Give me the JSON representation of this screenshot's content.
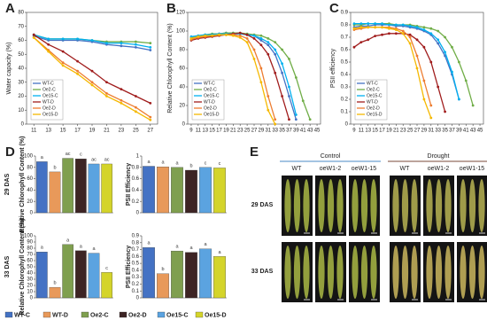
{
  "panel_labels": [
    "A",
    "B",
    "C",
    "D",
    "E"
  ],
  "panel_d": {
    "rows": [
      "29 DAS",
      "33 DAS"
    ]
  },
  "photo": {
    "groups": [
      "Control",
      "Drought"
    ],
    "columns": [
      "WT",
      "oeW1-2",
      "oeW1-15",
      "WT",
      "oeW1-2",
      "oeW1-15"
    ],
    "rows": [
      "29 DAS",
      "33 DAS"
    ]
  },
  "chart_data": [
    {
      "type": "line",
      "ylabel": "Water capacity (%)",
      "x": [
        11,
        13,
        15,
        17,
        19,
        21,
        23,
        25,
        27
      ],
      "xlim": [
        10,
        28
      ],
      "xticks": [
        11,
        13,
        15,
        17,
        19,
        21,
        23,
        25,
        27
      ],
      "ylim": [
        0,
        80
      ],
      "yticks": [
        0,
        10,
        20,
        30,
        40,
        50,
        60,
        70,
        80
      ],
      "legend": "lower left",
      "series": [
        {
          "name": "WT-C",
          "color": "#4472c4",
          "values": [
            63,
            60,
            60,
            60,
            59,
            57,
            56,
            55,
            53
          ]
        },
        {
          "name": "Oe2-C",
          "color": "#70ad47",
          "values": [
            64,
            61,
            61,
            61,
            60,
            59,
            59,
            59,
            58
          ]
        },
        {
          "name": "Oe15-C",
          "color": "#00b0f0",
          "values": [
            64,
            61,
            61,
            61,
            60,
            58,
            58,
            57,
            55
          ]
        },
        {
          "name": "WT-D",
          "color": "#a01c1c",
          "values": [
            64,
            57,
            52,
            45,
            38,
            30,
            25,
            20,
            15
          ]
        },
        {
          "name": "Oe2-D",
          "color": "#ed7d31",
          "values": [
            62,
            53,
            44,
            38,
            30,
            22,
            17,
            12,
            5
          ]
        },
        {
          "name": "Oe15-D",
          "color": "#f5b800",
          "values": [
            62,
            52,
            42,
            36,
            28,
            20,
            15,
            9,
            3
          ]
        }
      ]
    },
    {
      "type": "line",
      "ylabel": "Relative Chlorophyll Content (%)",
      "x": [
        9,
        11,
        13,
        15,
        17,
        19,
        21,
        23,
        25,
        27,
        29,
        31,
        33,
        35,
        37,
        39,
        41,
        43,
        45
      ],
      "xlim": [
        8,
        46
      ],
      "xticks": [
        9,
        11,
        13,
        15,
        17,
        19,
        21,
        23,
        25,
        27,
        29,
        31,
        33,
        35,
        37,
        39,
        41,
        43,
        45
      ],
      "ylim": [
        0,
        120
      ],
      "yticks": [
        0,
        20,
        40,
        60,
        80,
        100,
        120
      ],
      "legend": "lower left",
      "series": [
        {
          "name": "WT-C",
          "color": "#4472c4",
          "values": [
            92,
            94,
            95,
            96,
            97,
            98,
            98,
            97,
            96,
            95,
            90,
            85,
            75,
            55,
            30,
            5,
            null,
            null,
            null
          ]
        },
        {
          "name": "Oe2-C",
          "color": "#70ad47",
          "values": [
            93,
            95,
            96,
            97,
            97,
            98,
            98,
            98,
            97,
            96,
            95,
            92,
            88,
            80,
            70,
            50,
            25,
            5,
            null
          ]
        },
        {
          "name": "Oe15-C",
          "color": "#00b0f0",
          "values": [
            94,
            95,
            96,
            96,
            97,
            97,
            97,
            97,
            96,
            95,
            92,
            88,
            80,
            65,
            40,
            10,
            null,
            null,
            null
          ]
        },
        {
          "name": "WT-D",
          "color": "#a01c1c",
          "values": [
            90,
            92,
            93,
            94,
            95,
            96,
            97,
            98,
            96,
            92,
            85,
            75,
            55,
            30,
            5,
            null,
            null,
            null,
            null
          ]
        },
        {
          "name": "Oe2-D",
          "color": "#ed7d31",
          "values": [
            91,
            93,
            94,
            95,
            96,
            96,
            96,
            95,
            92,
            80,
            60,
            30,
            5,
            null,
            null,
            null,
            null,
            null,
            null
          ]
        },
        {
          "name": "Oe15-D",
          "color": "#f5b800",
          "values": [
            92,
            94,
            95,
            95,
            96,
            96,
            95,
            93,
            88,
            70,
            45,
            15,
            0,
            null,
            null,
            null,
            null,
            null,
            null
          ]
        }
      ]
    },
    {
      "type": "line",
      "ylabel": "PSII efficiency",
      "x": [
        9,
        11,
        13,
        15,
        17,
        19,
        21,
        23,
        25,
        27,
        29,
        31,
        33,
        35,
        37,
        39,
        41,
        43,
        45
      ],
      "xlim": [
        8,
        46
      ],
      "xticks": [
        9,
        11,
        13,
        15,
        17,
        19,
        21,
        23,
        25,
        27,
        29,
        31,
        33,
        35,
        37,
        39,
        41,
        43,
        45
      ],
      "ylim": [
        0,
        0.9
      ],
      "yticks": [
        0,
        0.1,
        0.2,
        0.3,
        0.4,
        0.5,
        0.6,
        0.7,
        0.8,
        0.9
      ],
      "legend": "lower left",
      "series": [
        {
          "name": "WT-C",
          "color": "#4472c4",
          "values": [
            0.78,
            0.79,
            0.79,
            0.8,
            0.8,
            0.8,
            0.79,
            0.79,
            0.78,
            0.77,
            0.75,
            0.72,
            0.65,
            0.55,
            0.4,
            0.2,
            null,
            null,
            null
          ]
        },
        {
          "name": "Oe2-C",
          "color": "#70ad47",
          "values": [
            0.8,
            0.8,
            0.81,
            0.81,
            0.81,
            0.81,
            0.8,
            0.8,
            0.8,
            0.79,
            0.78,
            0.77,
            0.75,
            0.7,
            0.62,
            0.5,
            0.35,
            0.15,
            null
          ]
        },
        {
          "name": "Oe15-C",
          "color": "#00b0f0",
          "values": [
            0.81,
            0.81,
            0.81,
            0.81,
            0.81,
            0.8,
            0.8,
            0.8,
            0.79,
            0.78,
            0.76,
            0.73,
            0.68,
            0.58,
            0.42,
            0.2,
            null,
            null,
            null
          ]
        },
        {
          "name": "WT-D",
          "color": "#a01c1c",
          "values": [
            0.62,
            0.66,
            0.68,
            0.71,
            0.72,
            0.73,
            0.73,
            0.73,
            0.72,
            0.68,
            0.62,
            0.5,
            0.3,
            0.1,
            null,
            null,
            null,
            null,
            null
          ]
        },
        {
          "name": "Oe2-D",
          "color": "#ed7d31",
          "values": [
            0.76,
            0.77,
            0.78,
            0.78,
            0.78,
            0.78,
            0.77,
            0.75,
            0.7,
            0.55,
            0.35,
            0.15,
            null,
            null,
            null,
            null,
            null,
            null,
            null
          ]
        },
        {
          "name": "Oe15-D",
          "color": "#f5b800",
          "values": [
            0.77,
            0.78,
            0.78,
            0.78,
            0.78,
            0.77,
            0.76,
            0.73,
            0.65,
            0.45,
            0.2,
            0.05,
            null,
            null,
            null,
            null,
            null,
            null,
            null
          ]
        }
      ]
    },
    {
      "type": "bar",
      "ylabel": "Relative Chlorophyll Content (%)",
      "categories": [
        "WT-C",
        "WT-D",
        "Oe2-C",
        "Oe2-D",
        "Oe15-C",
        "Oe15-D"
      ],
      "colors": [
        "#4472c4",
        "#e8995a",
        "#7f9f4f",
        "#3d2424",
        "#5ba3e0",
        "#d4d42a"
      ],
      "values": [
        90,
        72,
        96,
        95,
        86,
        86
      ],
      "annotations": [
        "a",
        "b",
        "ac",
        "c",
        "ac",
        "ac"
      ],
      "ylim": [
        0,
        100
      ],
      "yticks": [
        0,
        20,
        40,
        60,
        80,
        100
      ]
    },
    {
      "type": "bar",
      "ylabel": "PSII Efficiency",
      "categories": [
        "WT-C",
        "WT-D",
        "Oe2-C",
        "Oe2-D",
        "Oe15-C",
        "Oe15-D"
      ],
      "colors": [
        "#4472c4",
        "#e8995a",
        "#7f9f4f",
        "#3d2424",
        "#5ba3e0",
        "#d4d42a"
      ],
      "values": [
        0.82,
        0.81,
        0.8,
        0.75,
        0.8,
        0.79
      ],
      "annotations": [
        "a",
        "a",
        "a",
        "b",
        "c",
        "c"
      ],
      "ylim": [
        0,
        1
      ],
      "yticks": [
        0,
        0.2,
        0.4,
        0.6,
        0.8,
        1
      ]
    },
    {
      "type": "bar",
      "ylabel": "Relative Chlorophyll Content (%)",
      "categories": [
        "WT-C",
        "WT-D",
        "Oe2-C",
        "Oe2-D",
        "Oe15-C",
        "Oe15-D"
      ],
      "colors": [
        "#4472c4",
        "#e8995a",
        "#7f9f4f",
        "#3d2424",
        "#5ba3e0",
        "#d4d42a"
      ],
      "values": [
        74,
        17,
        86,
        76,
        72,
        41
      ],
      "annotations": [
        "a",
        "b",
        "a",
        "a",
        "a",
        "c"
      ],
      "ylim": [
        0,
        100
      ],
      "yticks": [
        0,
        10,
        20,
        30,
        40,
        50,
        60,
        70,
        80,
        90,
        100
      ]
    },
    {
      "type": "bar",
      "ylabel": "PSII Efficiency",
      "categories": [
        "WT-C",
        "WT-D",
        "Oe2-C",
        "Oe2-D",
        "Oe15-C",
        "Oe15-D"
      ],
      "colors": [
        "#4472c4",
        "#e8995a",
        "#7f9f4f",
        "#3d2424",
        "#5ba3e0",
        "#d4d42a"
      ],
      "values": [
        0.73,
        0.35,
        0.68,
        0.66,
        0.71,
        0.6
      ],
      "annotations": [
        "a",
        "b",
        "a",
        "a",
        "a",
        "a"
      ],
      "ylim": [
        0,
        0.9
      ],
      "yticks": [
        0,
        0.1,
        0.2,
        0.3,
        0.4,
        0.5,
        0.6,
        0.7,
        0.8,
        0.9
      ]
    }
  ]
}
